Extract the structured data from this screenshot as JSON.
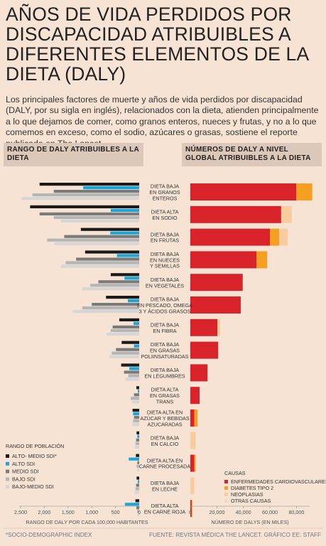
{
  "header": {
    "title": "AÑOS DE VIDA PERDIDOS POR DISCAPACIDAD ATRIBUIBLES A DIFERENTES ELEMENTOS DE LA DIETA (DALY)",
    "intro": "Los principales factores de muerte y años de vida perdidos por discapacidad (DALY, por su sigla en inglés), relacionados con la dieta, atienden principalmente a lo que dejamos de comer, como granos enteros, nueces y frutas, y no a lo que comemos en exceso, como el sodio, azúcares o grasas, sostiene el reporte publicado en The Lancet."
  },
  "left_header": "RANGO DE DALY ATRIBUIBLES A LA DIETA",
  "right_header": "NÚMEROS DE DALY A NIVEL GLOBAL ATRIBUIBLES A LA DIETA",
  "footer": {
    "note": "*SOCIO-DEMOGRAPHIC INDEX",
    "source": "FUENTE: REVISTA MÉDICA THE LANCET. GRÁFICO EE: STAFF"
  },
  "chart_data": [
    {
      "type": "bar",
      "orientation": "horizontal-left",
      "xlabel": "RANGO DE DALY POR CADA 100,000 HABITANTES",
      "xlim": [
        0,
        2500
      ],
      "ticks": [
        "2,500",
        "2,000",
        "1,500",
        "1,000",
        "500",
        "0"
      ],
      "tick_values": [
        2500,
        2000,
        1500,
        1000,
        500,
        0
      ],
      "legend_title": "RANGO DE POBLACIÓN",
      "legend_placement": "bottom-left",
      "categories": [
        "DIETA BAJA EN GRANOS ENTEROS",
        "DIETA ALTA EN SODIO",
        "DIETA BAJA EN FRUTAS",
        "DIETA BAJA EN NUECES Y SEMILLAS",
        "DIETA BAJA EN VEGETALES",
        "DIETA BAJA EN PESCADO, OMEGA 3 Y ÁCIDOS GRASOS",
        "DIETA BAJA EN FIBRA",
        "DIETA BAJA EN GRASAS POLIINSATURADAS",
        "DIETA BAJA EN LEGUMBRES",
        "DIETA ALTA EN GRASAS TRANS",
        "DIETA ALTA EN AZÚCAR Y BEBIDAS AZUCARADAS",
        "DIETA BAJA EN CALCIO",
        "DIETA ALTA EN CARNE PROCESADA",
        "DIETA BAJA EN LECHE",
        "DIETA ALTA EN CARNE ROJA"
      ],
      "series": [
        {
          "name": "ALTO- MEDIO SDI*",
          "color": "#1a1a1a",
          "values": [
            2100,
            2300,
            1230,
            1140,
            600,
            700,
            420,
            370,
            380,
            60,
            140,
            55,
            70,
            55,
            80
          ]
        },
        {
          "name": "ALTO SDI",
          "color": "#1aa7d8",
          "values": [
            1180,
            600,
            610,
            470,
            310,
            240,
            120,
            110,
            210,
            30,
            130,
            40,
            220,
            30,
            300
          ]
        },
        {
          "name": "MEDIO SDI",
          "color": "#7a7a7a",
          "values": [
            1800,
            2100,
            1580,
            1330,
            860,
            1000,
            560,
            490,
            320,
            110,
            110,
            65,
            40,
            65,
            60
          ]
        },
        {
          "name": "BAJO SDI",
          "color": "#b5b5b5",
          "values": [
            2250,
            1800,
            1940,
            1550,
            1030,
            1200,
            600,
            580,
            230,
            180,
            130,
            80,
            55,
            80,
            40
          ]
        },
        {
          "name": "BAJO-MEDIO SDI",
          "color": "#d6d6d6",
          "values": [
            2480,
            1650,
            1790,
            1650,
            1200,
            1400,
            690,
            630,
            290,
            150,
            150,
            95,
            40,
            95,
            35
          ]
        }
      ]
    },
    {
      "type": "bar",
      "orientation": "horizontal-stacked",
      "xlabel": "NÚMERO DE DALYS (EN MILES)",
      "xlim": [
        0,
        90000
      ],
      "ticks": [
        "0",
        "20,000",
        "40,000",
        "60,000",
        "80,000"
      ],
      "tick_values": [
        0,
        20000,
        40000,
        60000,
        80000
      ],
      "legend_title": "CAUSAS",
      "legend_placement": "bottom-right",
      "categories": [
        "DIETA BAJA EN GRANOS ENTEROS",
        "DIETA ALTA EN SODIO",
        "DIETA BAJA EN FRUTAS",
        "DIETA BAJA EN NUECES Y SEMILLAS",
        "DIETA BAJA EN VEGETALES",
        "DIETA BAJA EN PESCADO, OMEGA 3 Y ÁCIDOS GRASOS",
        "DIETA BAJA EN FIBRA",
        "DIETA BAJA EN GRASAS POLIINSATURADAS",
        "DIETA BAJA EN LEGUMBRES",
        "DIETA ALTA EN GRASAS TRANS",
        "DIETA ALTA EN AZÚCAR Y BEBIDAS AZUCARADAS",
        "DIETA BAJA EN CALCIO",
        "DIETA ALTA EN CARNE PROCESADA",
        "DIETA BAJA EN LECHE",
        "DIETA ALTA EN CARNE ROJA"
      ],
      "series": [
        {
          "name": "ENFERMEDADES CARDIOVASCULARES",
          "color": "#d9232b",
          "values": [
            80000,
            68500,
            60000,
            50000,
            39500,
            38000,
            20500,
            21000,
            13000,
            7000,
            3000,
            0,
            3000,
            0,
            1000
          ]
        },
        {
          "name": "DIABETES TIPO 2",
          "color": "#f5a020",
          "values": [
            12000,
            0,
            7000,
            8000,
            0,
            0,
            0,
            0,
            0,
            0,
            2500,
            0,
            1000,
            0,
            500
          ]
        },
        {
          "name": "NEOPLASIAS",
          "color": "#f9cca0",
          "values": [
            0,
            8000,
            6500,
            0,
            0,
            0,
            2000,
            0,
            0,
            0,
            0,
            4000,
            0,
            3000,
            0
          ]
        },
        {
          "name": "OTRAS CAUSAS",
          "color": "#f2d8c4",
          "values": [
            0,
            0,
            0,
            0,
            0,
            0,
            0,
            0,
            0,
            0,
            0,
            0,
            0,
            0,
            0
          ]
        }
      ]
    }
  ]
}
